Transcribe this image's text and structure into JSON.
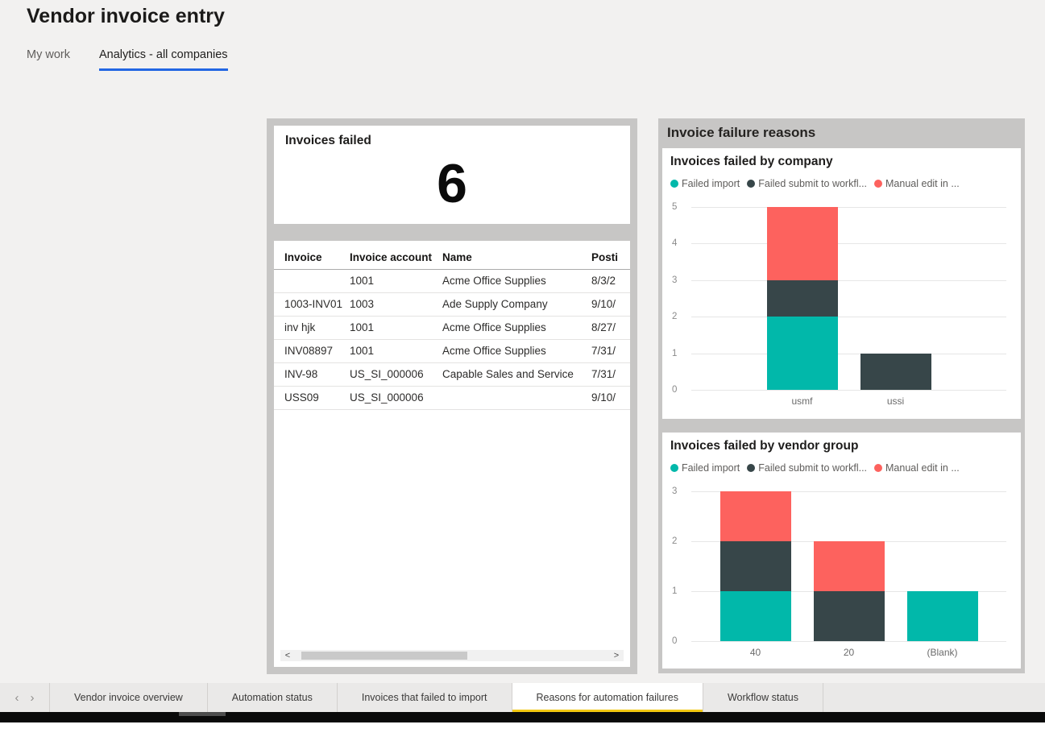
{
  "page": {
    "title": "Vendor invoice entry"
  },
  "top_tabs": [
    {
      "label": "My work",
      "active": false
    },
    {
      "label": "Analytics - all companies",
      "active": true
    }
  ],
  "kpi": {
    "title": "Invoices failed",
    "value": "6"
  },
  "invoice_table": {
    "headers": [
      "Invoice",
      "Invoice account",
      "Name",
      "Posti"
    ],
    "rows": [
      [
        "",
        "1001",
        "Acme Office Supplies",
        "8/3/2"
      ],
      [
        "1003-INV01",
        "1003",
        "Ade Supply Company",
        "9/10/"
      ],
      [
        "inv hjk",
        "1001",
        "Acme Office Supplies",
        "8/27/"
      ],
      [
        "INV08897",
        "1001",
        "Acme Office Supplies",
        "7/31/"
      ],
      [
        "INV-98",
        "US_SI_000006",
        "Capable Sales and Service",
        "7/31/"
      ],
      [
        "USS09",
        "US_SI_000006",
        "",
        "9/10/"
      ]
    ],
    "scrollbar": {
      "left_icon": "<",
      "right_icon": ">"
    }
  },
  "right_panel": {
    "header": "Invoice failure reasons"
  },
  "chart_data": [
    {
      "type": "bar",
      "stacked": true,
      "title": "Invoices failed by company",
      "categories": [
        "usmf",
        "ussi"
      ],
      "series": [
        {
          "name": "Failed import",
          "color": "#01B8AA",
          "values": [
            2,
            0
          ]
        },
        {
          "name": "Failed submit to workfl...",
          "color": "#374649",
          "values": [
            1,
            1
          ]
        },
        {
          "name": "Manual edit in ...",
          "color": "#FD625E",
          "values": [
            2,
            0
          ]
        }
      ],
      "ylim": [
        0,
        5
      ],
      "yticks": [
        0,
        1,
        2,
        3,
        4,
        5
      ],
      "grid": true,
      "legend_position": "top"
    },
    {
      "type": "bar",
      "stacked": true,
      "title": "Invoices failed by vendor group",
      "categories": [
        "40",
        "20",
        "(Blank)"
      ],
      "series": [
        {
          "name": "Failed import",
          "color": "#01B8AA",
          "values": [
            1,
            0,
            1
          ]
        },
        {
          "name": "Failed submit to workfl...",
          "color": "#374649",
          "values": [
            1,
            1,
            0
          ]
        },
        {
          "name": "Manual edit in ...",
          "color": "#FD625E",
          "values": [
            1,
            1,
            0
          ]
        }
      ],
      "ylim": [
        0,
        3
      ],
      "yticks": [
        0,
        1,
        2,
        3
      ],
      "grid": true,
      "legend_position": "top"
    }
  ],
  "bottom_bar": {
    "nav": {
      "left_icon": "‹",
      "right_icon": "›"
    },
    "tabs": [
      {
        "label": "Vendor invoice overview",
        "active": false
      },
      {
        "label": "Automation status",
        "active": false
      },
      {
        "label": "Invoices that failed to import",
        "active": false
      },
      {
        "label": "Reasons for automation failures",
        "active": true
      },
      {
        "label": "Workflow status",
        "active": false
      }
    ]
  },
  "colors": {
    "teal": "#01B8AA",
    "charcoal": "#374649",
    "red": "#FD625E",
    "active_page_underline": "#F2C811",
    "top_tab_underline": "#2266E3",
    "panel_background": "#C7C6C5"
  }
}
